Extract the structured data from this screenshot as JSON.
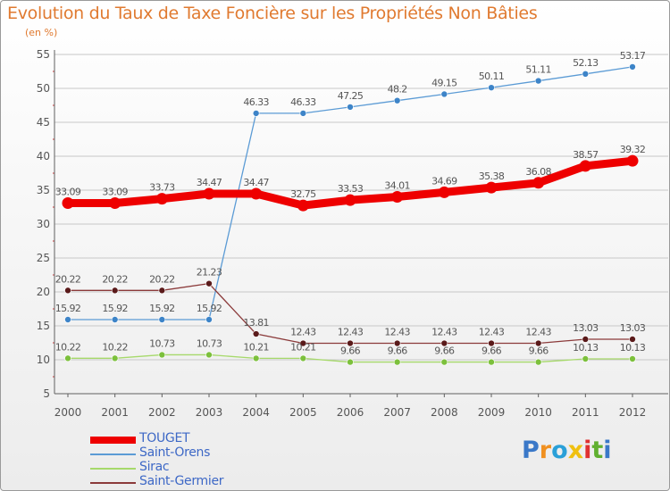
{
  "title": "Evolution du Taux de Taxe Foncière sur les Propriétés Non Bâties",
  "unit_label": "(en %)",
  "logo_text": "Proxiti",
  "colors": {
    "title": "#e07a30",
    "axis": "#606060",
    "grid": "#c8c8c8",
    "legend_text": "#3d68c6"
  },
  "chart_data": {
    "type": "line",
    "title": "Evolution du Taux de Taxe Foncière sur les Propriétés Non Bâties",
    "xlabel": "",
    "ylabel": "(en %)",
    "x": [
      "2000",
      "2001",
      "2002",
      "2003",
      "2004",
      "2005",
      "2006",
      "2007",
      "2008",
      "2009",
      "2010",
      "2011",
      "2012"
    ],
    "ylim": [
      5,
      55
    ],
    "yticks": [
      5,
      10,
      15,
      20,
      25,
      30,
      35,
      40,
      45,
      50,
      55
    ],
    "grid": "horizontal",
    "legend_position": "bottom-left",
    "series": [
      {
        "name": "TOUGET",
        "color": "#ee0000",
        "weight": "bold",
        "values": [
          33.09,
          33.09,
          33.73,
          34.47,
          34.47,
          32.75,
          33.53,
          34.01,
          34.69,
          35.38,
          36.08,
          38.57,
          39.32
        ],
        "labels": [
          "33.09",
          "33.09",
          "33.73",
          "34.47",
          "34.47",
          "32.75",
          "33.53",
          "34.01",
          "34.69",
          "35.38",
          "36.08",
          "38.57",
          "39.32"
        ]
      },
      {
        "name": "Saint-Orens",
        "color": "#5b9bd5",
        "marker": "#3d84c8",
        "weight": "thin",
        "values": [
          15.92,
          15.92,
          15.92,
          15.92,
          46.33,
          46.33,
          47.25,
          48.2,
          49.15,
          50.11,
          51.11,
          52.13,
          53.17
        ],
        "labels": [
          "15.92",
          "15.92",
          "15.92",
          "15.92",
          "46.33",
          "46.33",
          "47.25",
          "48.2",
          "49.15",
          "50.11",
          "51.11",
          "52.13",
          "53.17"
        ]
      },
      {
        "name": "Sirac",
        "color": "#a6d96a",
        "marker": "#7cc03c",
        "weight": "thin",
        "values": [
          10.22,
          10.22,
          10.73,
          10.73,
          10.21,
          10.21,
          9.66,
          9.66,
          9.66,
          9.66,
          9.66,
          10.13,
          10.13
        ],
        "labels": [
          "10.22",
          "10.22",
          "10.73",
          "10.73",
          "10.21",
          "10.21",
          "9.66",
          "9.66",
          "9.66",
          "9.66",
          "9.66",
          "10.13",
          "10.13"
        ]
      },
      {
        "name": "Saint-Germier",
        "color": "#8b3a3a",
        "marker": "#5a1a1a",
        "weight": "thin",
        "values": [
          20.22,
          20.22,
          20.22,
          21.23,
          13.81,
          12.43,
          12.43,
          12.43,
          12.43,
          12.43,
          12.43,
          13.03,
          13.03
        ],
        "labels": [
          "20.22",
          "20.22",
          "20.22",
          "21.23",
          "13.81",
          "12.43",
          "12.43",
          "12.43",
          "12.43",
          "12.43",
          "12.43",
          "13.03",
          "13.03"
        ]
      }
    ]
  }
}
